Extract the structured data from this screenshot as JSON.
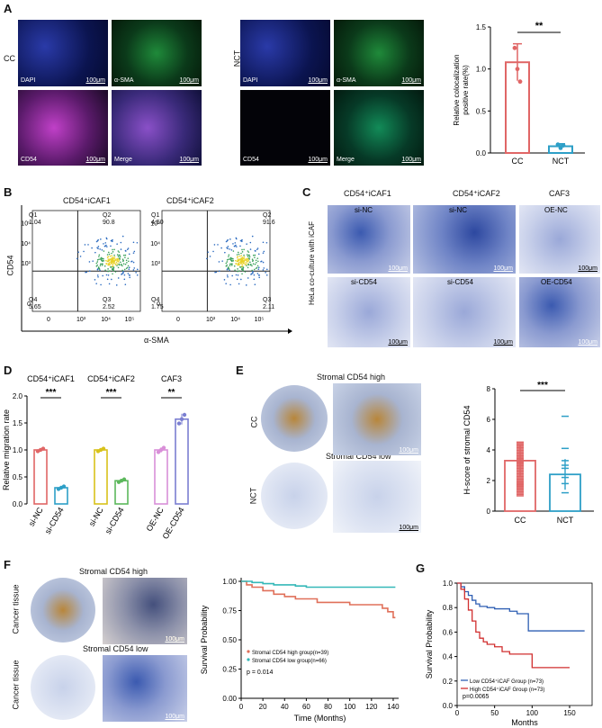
{
  "panels": {
    "A": {
      "letter": "A",
      "group_cc": "CC",
      "group_nct": "NCT",
      "tiles": {
        "dapi": "DAPI",
        "asma": "α-SMA",
        "cd54": "CD54",
        "merge": "Merge"
      },
      "scale": "100μm"
    },
    "B": {
      "letter": "B",
      "left_title": "CD54⁺iCAF1",
      "right_title": "CD54⁺iCAF2",
      "ylabel": "CD54",
      "xlabel": "α-SMA",
      "left_quadrants": {
        "q1": "Q1",
        "q1v": "1.04",
        "q2": "Q2",
        "q2v": "90.8",
        "q3": "Q3",
        "q3v": "2.52",
        "q4": "Q4",
        "q4v": "5.65"
      },
      "right_quadrants": {
        "q1": "Q1",
        "q1v": "4.50",
        "q2": "Q2",
        "q2v": "91.6",
        "q3": "Q3",
        "q3v": "2.11",
        "q4": "Q4",
        "q4v": "1.75"
      },
      "ticks_y": [
        "10⁵",
        "10⁴",
        "10³",
        "0"
      ],
      "ticks_x": [
        "0",
        "10³",
        "10⁴",
        "10⁵"
      ]
    },
    "C": {
      "letter": "C",
      "col1": "CD54⁺iCAF1",
      "col2": "CD54⁺iCAF2",
      "col3": "CAF3",
      "side": "HeLa co-culture with iCAF",
      "top_labels": [
        "si-NC",
        "si-NC",
        "OE-NC"
      ],
      "bottom_labels": [
        "si-CD54",
        "si-CD54",
        "OE-CD54"
      ],
      "scale": "100μm"
    },
    "D": {
      "letter": "D",
      "ylabel": "Relative migration rate",
      "groups": [
        "CD54⁺iCAF1",
        "CD54⁺iCAF2",
        "CAF3"
      ],
      "sig": [
        "***",
        "***",
        "**"
      ],
      "yticks": [
        "2.0",
        "1.5",
        "1.0",
        "0.5",
        "0.0"
      ]
    },
    "E": {
      "letter": "E",
      "high_label": "Stromal CD54 high",
      "low_label": "Stromal CD54 low",
      "row1": "CC",
      "row2": "NCT",
      "scale": "100μm",
      "ylabel": "H-score of stromal CD54",
      "sig": "***",
      "yticks": [
        "8",
        "6",
        "4",
        "2",
        "0"
      ]
    },
    "F": {
      "letter": "F",
      "high_label": "Stromal CD54 high",
      "low_label": "Stromal CD54 low",
      "row_label": "Cancer tissue",
      "scale": "100μm",
      "ylabel": "Survival Probability",
      "xlabel": "Time (Months)",
      "legend_high": "Stromal CD54 high group(n=39)",
      "legend_low": "Stromal CD54 low group(n=66)",
      "pvalue": "p = 0.014",
      "yticks": [
        "1.00",
        "0.75",
        "0.50",
        "0.25",
        "0.00"
      ],
      "xticks": [
        "0",
        "20",
        "40",
        "60",
        "80",
        "100",
        "120",
        "140"
      ]
    },
    "G": {
      "letter": "G",
      "ylabel": "Survival Probability",
      "xlabel": "Months",
      "legend_low": "Low  CD54⁺iCAF Group (n=73)",
      "legend_high": "High CD54⁺iCAF Group (n=73)",
      "pvalue": "p=0.0065",
      "yticks": [
        "1.0",
        "0.8",
        "0.6",
        "0.4",
        "0.2",
        "0.0"
      ],
      "xticks": [
        "0",
        "50",
        "100",
        "150"
      ]
    }
  },
  "chart_data": [
    {
      "type": "bar",
      "panel": "A",
      "categories": [
        "CC",
        "NCT"
      ],
      "values": [
        1.08,
        0.08
      ],
      "errors": [
        0.22,
        0.03
      ],
      "points": [
        [
          1.25,
          1.0,
          0.85
        ],
        [
          0.1,
          0.06,
          0.09
        ]
      ],
      "ylabel": "Relative colocalization positive rate(%)",
      "ylim": [
        0,
        1.5
      ],
      "yticks": [
        "0.0",
        "0.5",
        "1.0",
        "1.5"
      ],
      "annotation": "**",
      "colors": [
        "#e06666",
        "#2d9fc7"
      ]
    },
    {
      "type": "bar",
      "panel": "D",
      "categories": [
        "si-NC",
        "si-CD54",
        "si-NC",
        "si-CD54",
        "OE-NC",
        "OE-CD54"
      ],
      "values": [
        1.0,
        0.3,
        1.0,
        0.43,
        1.0,
        1.57
      ],
      "errors": [
        0.03,
        0.03,
        0.03,
        0.03,
        0.05,
        0.1
      ],
      "ylim": [
        0,
        2.0
      ],
      "colors": [
        "#e06666",
        "#2d9fc7",
        "#d8c21a",
        "#5cb85c",
        "#d98fd8",
        "#7b7fd1"
      ]
    },
    {
      "type": "bar",
      "panel": "E",
      "categories": [
        "CC",
        "NCT"
      ],
      "values": [
        3.3,
        2.4
      ],
      "errors": [
        1.0,
        1.0
      ],
      "ylim": [
        0,
        8
      ],
      "colors": [
        "#e06666",
        "#2d9fc7"
      ]
    },
    {
      "type": "line",
      "panel": "F",
      "series": [
        {
          "name": "Stromal CD54 high group(n=39)",
          "x": [
            0,
            5,
            10,
            20,
            30,
            40,
            50,
            60,
            70,
            80,
            90,
            100,
            110,
            120,
            130,
            135,
            140,
            142
          ],
          "y": [
            1.0,
            0.97,
            0.95,
            0.92,
            0.89,
            0.87,
            0.85,
            0.85,
            0.82,
            0.82,
            0.82,
            0.8,
            0.8,
            0.8,
            0.77,
            0.74,
            0.69,
            0.69
          ],
          "color": "#e0705a"
        },
        {
          "name": "Stromal CD54 low group(n=66)",
          "x": [
            0,
            10,
            20,
            30,
            40,
            50,
            60,
            70,
            100,
            120,
            142
          ],
          "y": [
            1.0,
            0.99,
            0.98,
            0.97,
            0.97,
            0.96,
            0.95,
            0.95,
            0.95,
            0.95,
            0.95
          ],
          "color": "#35b8b8"
        }
      ],
      "ylim": [
        0,
        1.0
      ],
      "xlim": [
        0,
        145
      ]
    },
    {
      "type": "line",
      "panel": "G",
      "series": [
        {
          "name": "Low  CD54⁺iCAF Group (n=73)",
          "x": [
            0,
            5,
            10,
            15,
            20,
            25,
            30,
            40,
            50,
            60,
            70,
            80,
            90,
            95,
            100,
            110,
            140,
            170
          ],
          "y": [
            1.0,
            0.97,
            0.93,
            0.9,
            0.86,
            0.83,
            0.81,
            0.8,
            0.79,
            0.79,
            0.77,
            0.75,
            0.75,
            0.61,
            0.61,
            0.61,
            0.61,
            0.61
          ],
          "color": "#2f5fb3"
        },
        {
          "name": "High CD54⁺iCAF Group (n=73)",
          "x": [
            0,
            5,
            10,
            15,
            20,
            25,
            30,
            35,
            40,
            50,
            60,
            70,
            80,
            90,
            100,
            110,
            130,
            150
          ],
          "y": [
            1.0,
            0.95,
            0.87,
            0.78,
            0.69,
            0.6,
            0.55,
            0.52,
            0.5,
            0.48,
            0.44,
            0.42,
            0.42,
            0.42,
            0.31,
            0.31,
            0.31,
            0.31
          ],
          "color": "#d12f2f"
        }
      ],
      "ylim": [
        0,
        1.0
      ],
      "xlim": [
        0,
        180
      ]
    }
  ]
}
